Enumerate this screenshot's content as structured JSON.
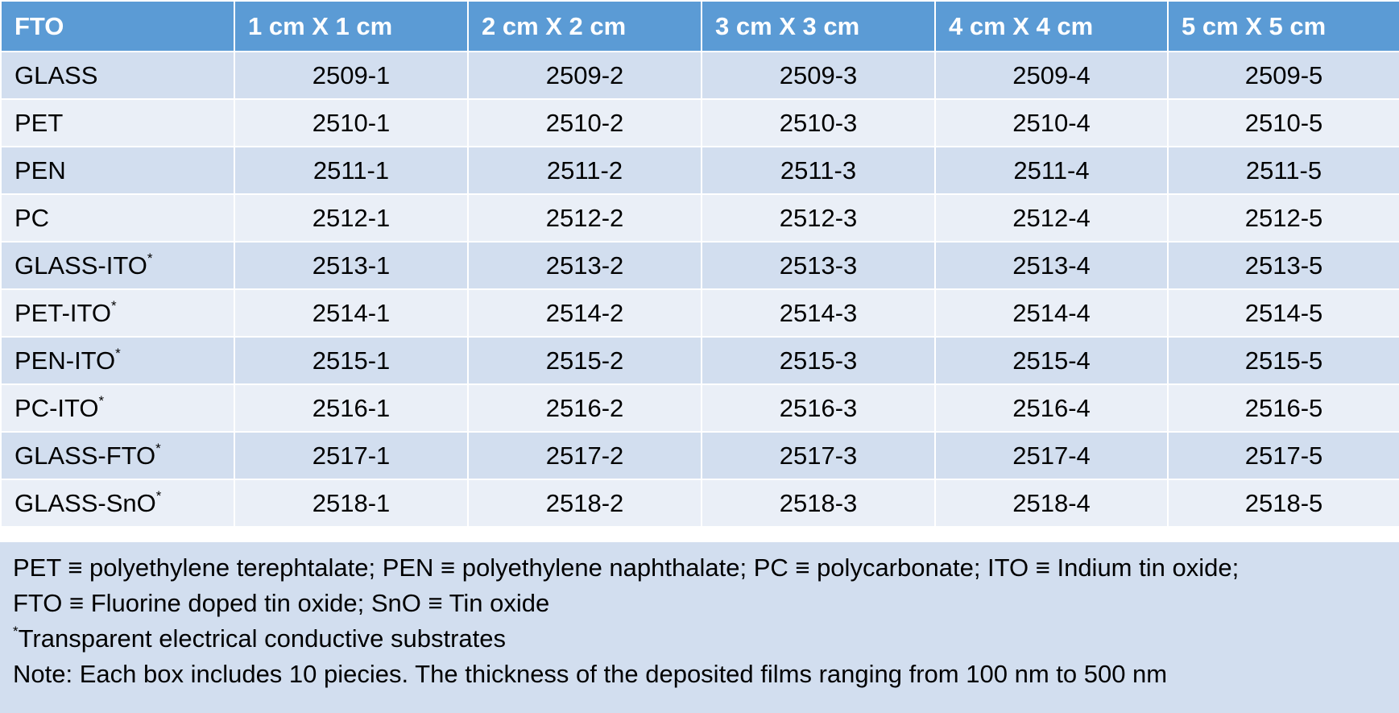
{
  "table": {
    "headers": [
      "FTO",
      "1 cm X 1 cm",
      "2 cm X 2 cm",
      "3 cm X 3 cm",
      "4 cm X 4 cm",
      "5 cm X 5 cm"
    ],
    "rows": [
      {
        "substrate": "GLASS",
        "star": "",
        "codes": [
          "2509-1",
          "2509-2",
          "2509-3",
          "2509-4",
          "2509-5"
        ]
      },
      {
        "substrate": "PET",
        "star": "",
        "codes": [
          "2510-1",
          "2510-2",
          "2510-3",
          "2510-4",
          "2510-5"
        ]
      },
      {
        "substrate": "PEN",
        "star": "",
        "codes": [
          "2511-1",
          "2511-2",
          "2511-3",
          "2511-4",
          "2511-5"
        ]
      },
      {
        "substrate": "PC",
        "star": "",
        "codes": [
          "2512-1",
          "2512-2",
          "2512-3",
          "2512-4",
          "2512-5"
        ]
      },
      {
        "substrate": "GLASS-ITO",
        "star": "*",
        "codes": [
          "2513-1",
          "2513-2",
          "2513-3",
          "2513-4",
          "2513-5"
        ]
      },
      {
        "substrate": "PET-ITO",
        "star": "*",
        "codes": [
          "2514-1",
          "2514-2",
          "2514-3",
          "2514-4",
          "2514-5"
        ]
      },
      {
        "substrate": "PEN-ITO",
        "star": "*",
        "codes": [
          "2515-1",
          "2515-2",
          "2515-3",
          "2515-4",
          "2515-5"
        ]
      },
      {
        "substrate": "PC-ITO",
        "star": "*",
        "codes": [
          "2516-1",
          "2516-2",
          "2516-3",
          "2516-4",
          "2516-5"
        ]
      },
      {
        "substrate": "GLASS-FTO",
        "star": "*",
        "codes": [
          "2517-1",
          "2517-2",
          "2517-3",
          "2517-4",
          "2517-5"
        ]
      },
      {
        "substrate": "GLASS-SnO",
        "star": "*",
        "codes": [
          "2518-1",
          "2518-2",
          "2518-3",
          "2518-4",
          "2518-5"
        ]
      }
    ]
  },
  "notes": {
    "abbreviations_line1": "PET ≡ polyethylene terephtalate; PEN ≡ polyethylene naphthalate; PC ≡ polycarbonate; ITO ≡ Indium tin oxide;",
    "abbreviations_line2": "FTO ≡ Fluorine doped tin oxide; SnO ≡ Tin oxide",
    "footnote_star": "*",
    "footnote_text": "Transparent electrical conductive substrates",
    "note": "Note: Each box includes 10 piecies. The thickness of the deposited films ranging from 100 nm to 500 nm"
  },
  "colors": {
    "header_bg": "#5b9bd5",
    "row_dark": "#d2deef",
    "row_light": "#eaeff7",
    "notes_bg": "#d2deef"
  }
}
